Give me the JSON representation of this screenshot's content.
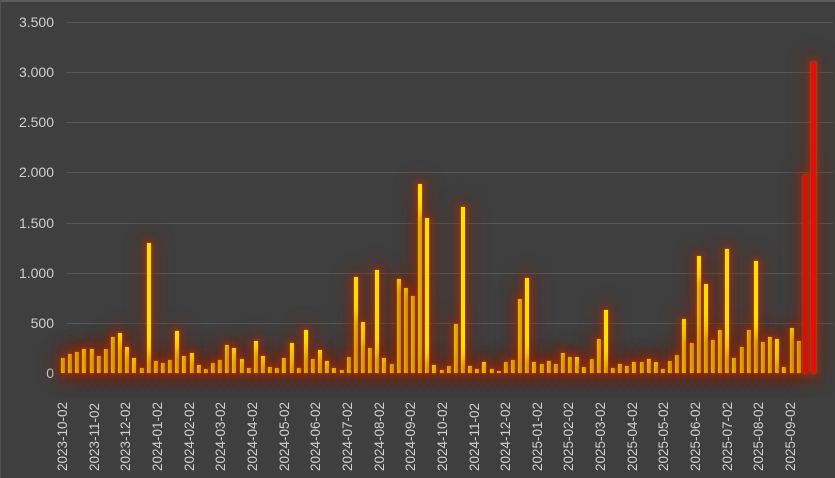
{
  "window": {
    "background_color": "#3f3f3f",
    "top_edge_color": "#5c5c5c",
    "text_color": "#cfcfcf"
  },
  "chart_data": {
    "type": "bar",
    "title": "",
    "xlabel": "",
    "ylabel": "",
    "grid": "horizontal",
    "legend": "none",
    "ylim": [
      0,
      3500
    ],
    "y_tick_step": 500,
    "y_tick_labels": [
      "0",
      "500",
      "1.000",
      "1.500",
      "2.000",
      "2.500",
      "3.000",
      "3.500"
    ],
    "x_tick_labels": [
      "2023-10-02",
      "2023-11-02",
      "2023-12-02",
      "2024-01-02",
      "2024-02-02",
      "2024-03-02",
      "2024-04-02",
      "2024-05-02",
      "2024-06-02",
      "2024-07-02",
      "2024-08-02",
      "2024-09-02",
      "2024-10-02",
      "2024-11-02",
      "2024-12-02",
      "2025-01-02",
      "2025-02-02",
      "2025-03-02",
      "2025-04-02",
      "2025-05-02",
      "2025-06-02",
      "2025-07-02",
      "2025-08-02",
      "2025-09-02"
    ],
    "values": [
      145,
      185,
      210,
      235,
      235,
      170,
      235,
      360,
      395,
      255,
      145,
      45,
      1300,
      120,
      95,
      130,
      415,
      170,
      200,
      80,
      40,
      100,
      130,
      275,
      245,
      140,
      50,
      320,
      170,
      60,
      50,
      145,
      295,
      45,
      430,
      135,
      225,
      120,
      45,
      25,
      160,
      955,
      505,
      245,
      1030,
      145,
      85,
      940,
      845,
      770,
      1880,
      1550,
      80,
      30,
      70,
      490,
      1660,
      70,
      35,
      110,
      35,
      20,
      110,
      130,
      740,
      950,
      110,
      90,
      120,
      90,
      195,
      155,
      155,
      55,
      135,
      335,
      630,
      50,
      90,
      70,
      110,
      110,
      135,
      110,
      35,
      120,
      175,
      540,
      295,
      1165,
      890,
      330,
      430,
      1240,
      145,
      255,
      425,
      1115,
      310,
      360,
      340,
      55,
      450,
      315,
      1970,
      3100
    ],
    "bar_color": "#ffe100",
    "highlight_color": "#e80c0c",
    "highlight_last_n": 2,
    "glow_color": "#a03208",
    "gridline_color": "#575757",
    "label_color": "#cfcfcf"
  }
}
